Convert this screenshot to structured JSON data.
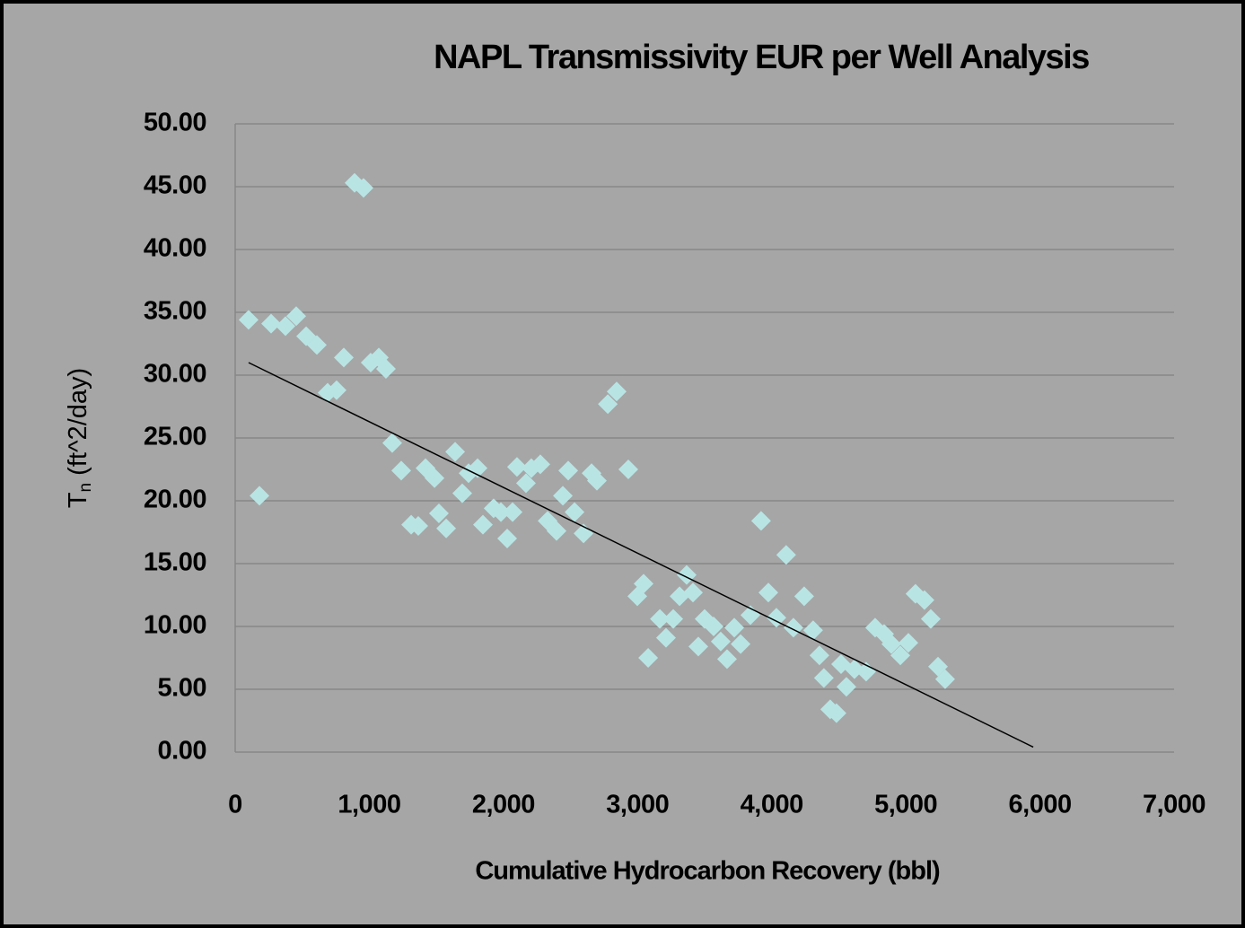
{
  "chart_data": {
    "type": "scatter",
    "title": "NAPL Transmissivity EUR per Well Analysis",
    "xlabel": "Cumulative Hydrocarbon Recovery (bbl)",
    "ylabel": [
      "T",
      "n",
      " (ft^2/day)"
    ],
    "color": "#b9e4e4",
    "grid": true,
    "xlim": [
      0,
      7000
    ],
    "ylim": [
      0,
      50
    ],
    "xticks": [
      0,
      {
        "value": 1000,
        "label": "1,000"
      },
      {
        "value": 2000,
        "label": "2,000"
      },
      {
        "value": 3000,
        "label": "3,000"
      },
      {
        "value": 4000,
        "label": "4,000"
      },
      {
        "value": 5000,
        "label": "5,000"
      },
      {
        "value": 6000,
        "label": "6,000"
      },
      {
        "value": 7000,
        "label": "7,000"
      }
    ],
    "yticks": [
      {
        "value": 0,
        "label": "0.00"
      },
      {
        "value": 5,
        "label": "5.00"
      },
      {
        "value": 10,
        "label": "10.00"
      },
      {
        "value": 15,
        "label": "15.00"
      },
      {
        "value": 20,
        "label": "20.00"
      },
      {
        "value": 25,
        "label": "25.00"
      },
      {
        "value": 30,
        "label": "30.00"
      },
      {
        "value": 35,
        "label": "35.00"
      },
      {
        "value": 40,
        "label": "40.00"
      },
      {
        "value": 45,
        "label": "45.00"
      },
      {
        "value": 50,
        "label": "50.00"
      }
    ],
    "x": [
      100,
      181,
      268,
      375,
      455,
      529,
      609,
      689,
      756,
      810,
      890,
      957,
      1010,
      1071,
      1124,
      1171,
      1238,
      1312,
      1365,
      1419,
      1486,
      1519,
      1573,
      1640,
      1693,
      1740,
      1807,
      1847,
      1927,
      1981,
      2028,
      2068,
      2101,
      2168,
      2208,
      2275,
      2329,
      2396,
      2443,
      2483,
      2530,
      2597,
      2657,
      2697,
      2778,
      2844,
      2931,
      2998,
      3045,
      3079,
      3166,
      3212,
      3266,
      3313,
      3366,
      3413,
      3453,
      3500,
      3567,
      3620,
      3667,
      3721,
      3768,
      3841,
      3921,
      3975,
      4035,
      4108,
      4162,
      4242,
      4309,
      4356,
      4389,
      4436,
      4483,
      4517,
      4557,
      4617,
      4704,
      4771,
      4838,
      4892,
      4959,
      5019,
      5072,
      5139,
      5186,
      5240,
      5293
    ],
    "values": [
      34.4,
      20.4,
      34.1,
      33.9,
      34.7,
      33.1,
      32.4,
      28.6,
      28.8,
      31.4,
      45.3,
      44.9,
      31.0,
      31.4,
      30.5,
      24.6,
      22.4,
      18.1,
      18.0,
      22.6,
      21.8,
      19.0,
      17.8,
      23.9,
      20.6,
      22.2,
      22.6,
      18.1,
      19.4,
      19.1,
      17.0,
      19.1,
      22.7,
      21.4,
      22.6,
      22.9,
      18.4,
      17.6,
      20.4,
      22.4,
      19.1,
      17.4,
      22.2,
      21.6,
      27.7,
      28.7,
      22.5,
      12.4,
      13.4,
      7.5,
      10.6,
      9.1,
      10.6,
      12.4,
      14.1,
      12.7,
      8.4,
      10.6,
      10.0,
      8.8,
      7.4,
      9.9,
      8.6,
      10.9,
      18.4,
      12.7,
      10.7,
      15.7,
      9.9,
      12.4,
      9.7,
      7.7,
      5.9,
      3.4,
      3.1,
      7.0,
      5.2,
      6.6,
      6.4,
      9.9,
      9.4,
      8.6,
      7.7,
      8.7,
      12.6,
      12.1,
      10.6,
      6.8,
      5.8
    ],
    "trendline": {
      "color": "#000000",
      "x": [
        100,
        5950
      ],
      "values": [
        31.0,
        0.4
      ]
    }
  }
}
